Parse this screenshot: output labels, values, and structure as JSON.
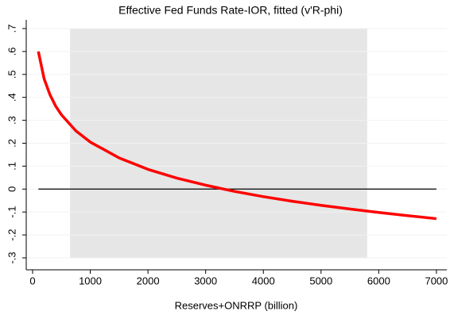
{
  "chart_data": {
    "type": "line",
    "title": "Effective Fed Funds Rate-IOR, fitted (v'R-phi)",
    "x_label": "Reserves+ONRRP (billion)",
    "x": [
      100,
      200,
      300,
      400,
      500,
      750,
      1000,
      1500,
      2000,
      2500,
      3000,
      3500,
      4000,
      4500,
      5000,
      5500,
      6000,
      6500,
      7000
    ],
    "series": [
      {
        "color": "#ff0000",
        "values": [
          0.6,
          0.481,
          0.412,
          0.362,
          0.324,
          0.254,
          0.205,
          0.136,
          0.086,
          0.048,
          0.017,
          -0.01,
          -0.033,
          -0.053,
          -0.071,
          -0.087,
          -0.102,
          -0.116,
          -0.129
        ]
      }
    ],
    "shaded_region": {
      "x": [
        650,
        5800
      ],
      "y": [
        -0.3,
        0.7
      ],
      "color": "#e6e6e6"
    },
    "reference_line": {
      "y": 0,
      "x": [
        100,
        7000
      ],
      "color": "#000000"
    },
    "xlim": [
      -110,
      7180
    ],
    "ylim": [
      -0.352,
      0.738
    ],
    "xticks": [
      0,
      1000,
      2000,
      3000,
      4000,
      5000,
      6000,
      7000
    ],
    "yticks": [
      {
        "value": 0.7,
        "label": ".7"
      },
      {
        "value": 0.6,
        "label": ".6"
      },
      {
        "value": 0.5,
        "label": ".5"
      },
      {
        "value": 0.4,
        "label": ".4"
      },
      {
        "value": 0.3,
        "label": ".3"
      },
      {
        "value": 0.2,
        "label": ".2"
      },
      {
        "value": 0.1,
        "label": ".1"
      },
      0,
      {
        "value": -0.1,
        "label": "-.1"
      },
      {
        "value": -0.2,
        "label": "-.2"
      },
      {
        "value": -0.3,
        "label": "-.3"
      }
    ],
    "grid": true
  }
}
